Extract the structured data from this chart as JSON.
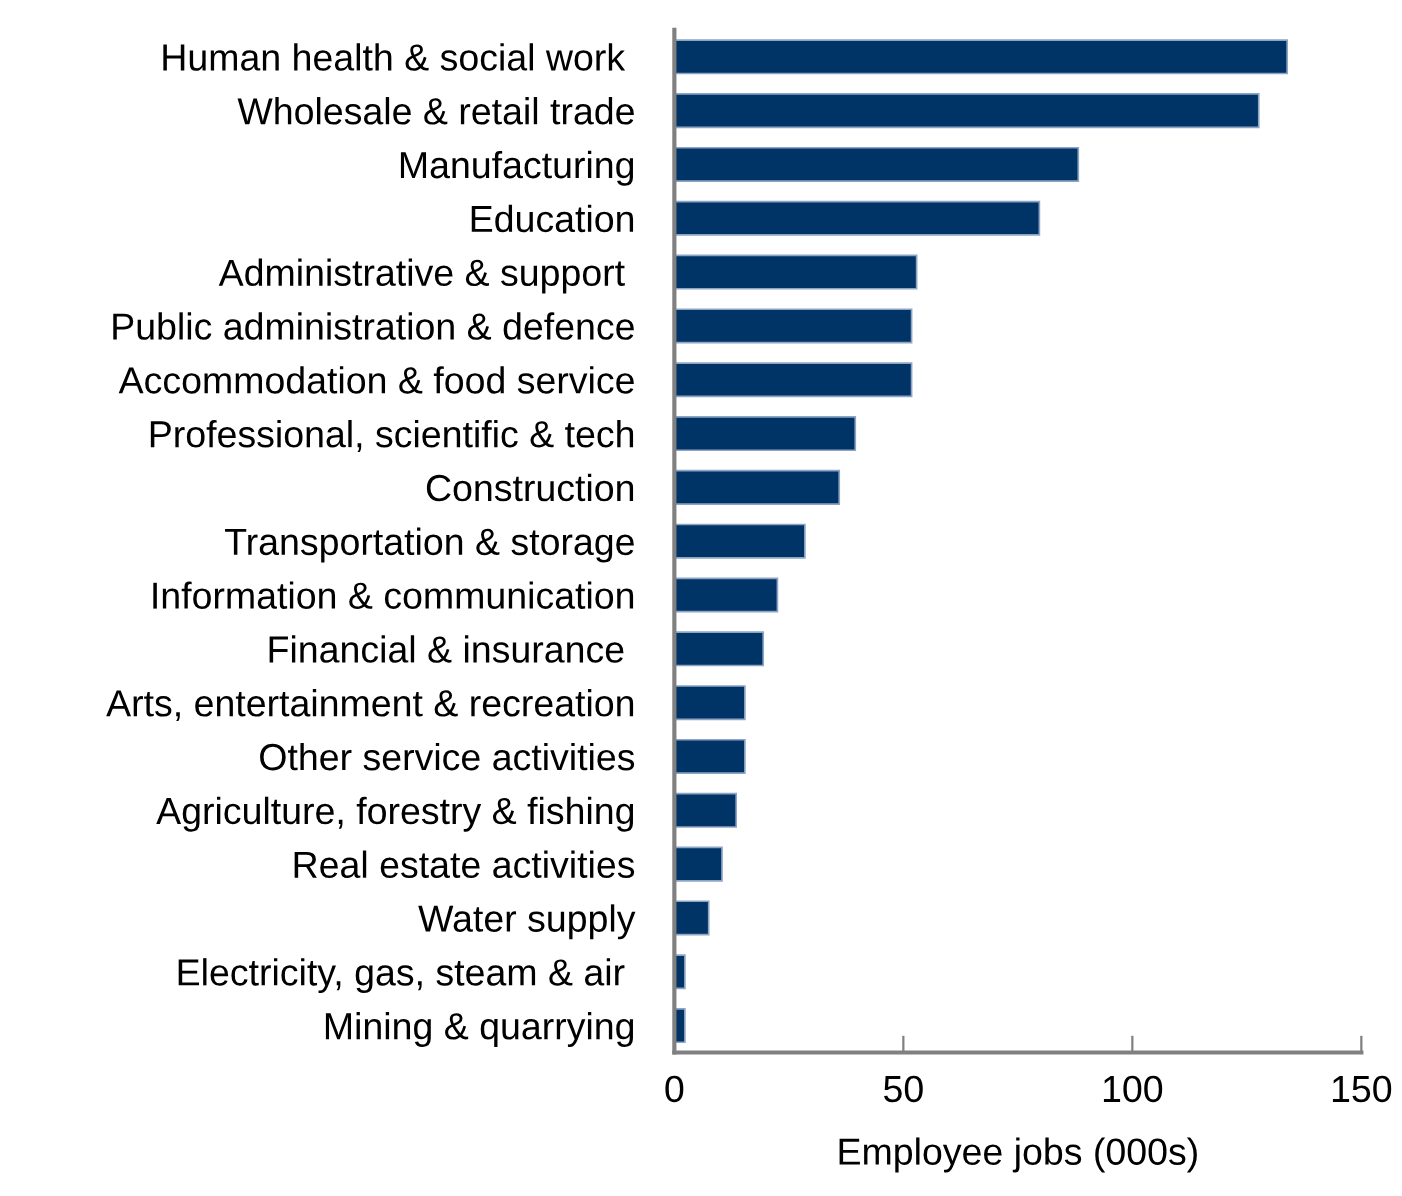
{
  "chart_data": {
    "type": "bar",
    "orientation": "horizontal",
    "xlabel": "Employee jobs (000s)",
    "categories": [
      "Human health & social work ",
      "Wholesale & retail trade",
      "Manufacturing",
      "Education",
      "Administrative & support ",
      "Public administration & defence",
      "Accommodation & food service",
      "Professional, scientific & tech",
      "Construction",
      "Transportation & storage",
      "Information & communication",
      "Financial & insurance ",
      "Arts, entertainment & recreation",
      "Other service activities",
      "Agriculture, forestry & fishing",
      "Real estate activities",
      "Water supply",
      "Electricity, gas, steam & air ",
      "Mining & quarrying"
    ],
    "values": [
      133.8,
      127.6,
      88.2,
      79.7,
      52.9,
      51.8,
      51.8,
      39.5,
      36.0,
      28.5,
      22.5,
      19.4,
      15.4,
      15.4,
      13.5,
      10.4,
      7.5,
      2.3,
      2.3
    ],
    "color": "#003366",
    "xlim": [
      0,
      150
    ],
    "xticks": [
      0,
      50,
      100,
      150
    ],
    "grid": false
  }
}
